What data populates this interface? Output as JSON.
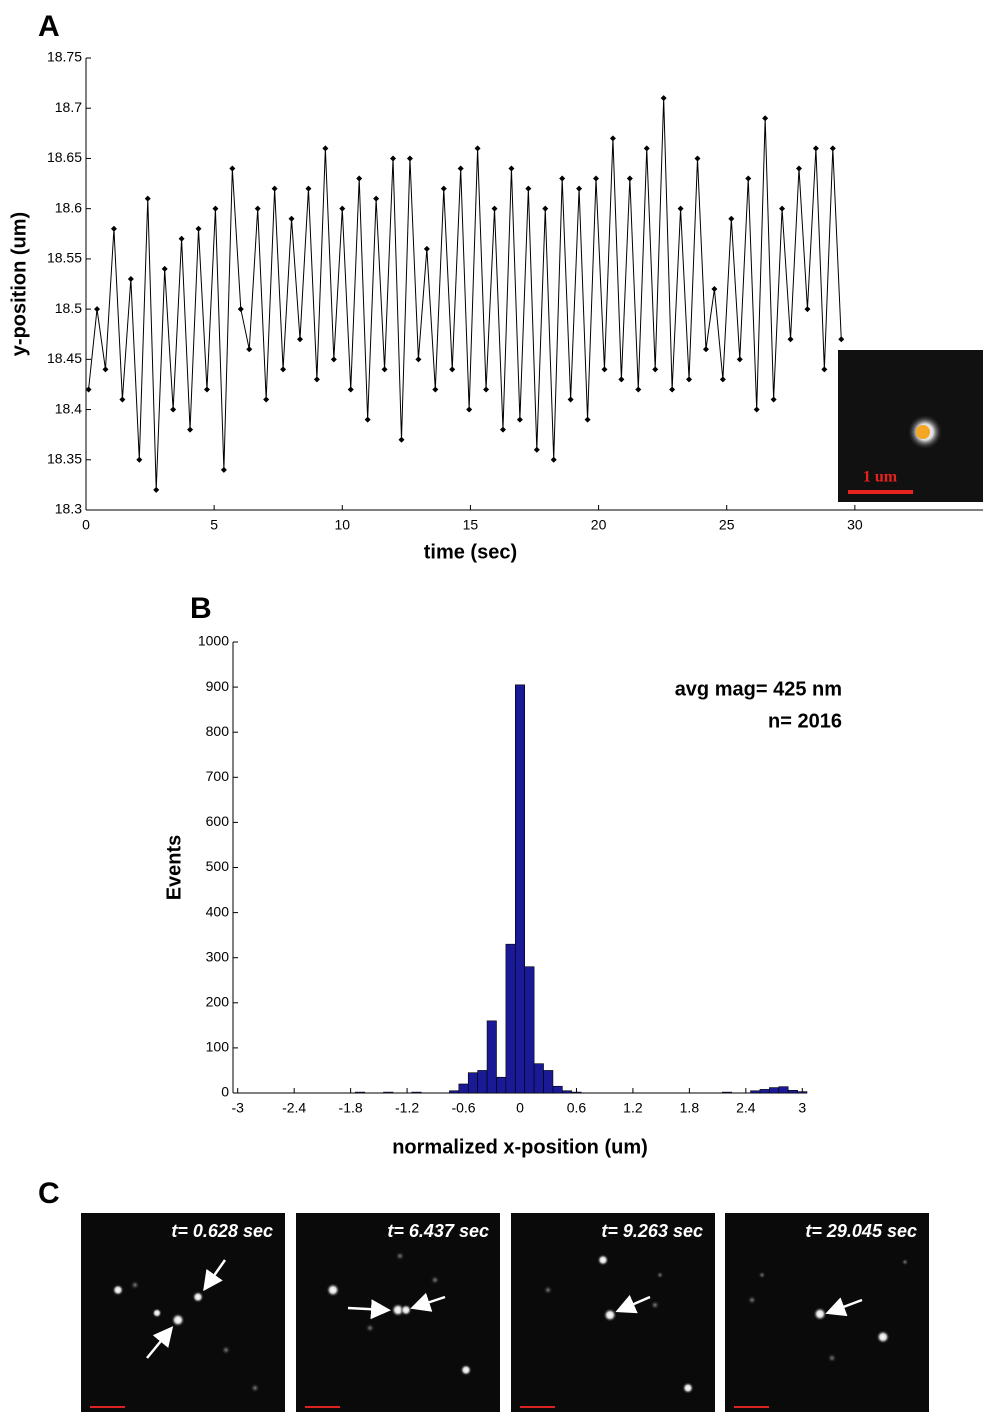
{
  "panel_labels": [
    "A",
    "B",
    "C"
  ],
  "inset": {
    "scale_label": "1 um"
  },
  "snapshots": [
    {
      "label": "t= 0.628 sec"
    },
    {
      "label": "t= 6.437 sec"
    },
    {
      "label": "t= 9.263 sec"
    },
    {
      "label": "t= 29.045 sec"
    }
  ],
  "chart_data": [
    {
      "type": "line",
      "x_label": "time (sec)",
      "y_label": "y-position (um)",
      "color": "#000000",
      "x": [
        0.1,
        0.43,
        0.76,
        1.09,
        1.42,
        1.75,
        2.08,
        2.41,
        2.74,
        3.07,
        3.4,
        3.73,
        4.06,
        4.39,
        4.72,
        5.05,
        5.38,
        5.71,
        6.04,
        6.37,
        6.7,
        7.03,
        7.36,
        7.69,
        8.02,
        8.35,
        8.68,
        9.01,
        9.34,
        9.67,
        10,
        10.33,
        10.66,
        10.99,
        11.32,
        11.65,
        11.98,
        12.31,
        12.64,
        12.97,
        13.3,
        13.63,
        13.96,
        14.29,
        14.62,
        14.95,
        15.28,
        15.61,
        15.94,
        16.27,
        16.6,
        16.93,
        17.26,
        17.59,
        17.92,
        18.25,
        18.58,
        18.91,
        19.24,
        19.57,
        19.9,
        20.23,
        20.56,
        20.89,
        21.22,
        21.55,
        21.88,
        22.21,
        22.54,
        22.87,
        23.2,
        23.53,
        23.86,
        24.19,
        24.52,
        24.85,
        25.18,
        25.51,
        25.84,
        26.17,
        26.5,
        26.83,
        27.16,
        27.49,
        27.82,
        28.15,
        28.48,
        28.81,
        29.14,
        29.47
      ],
      "values": [
        18.42,
        18.5,
        18.44,
        18.58,
        18.41,
        18.53,
        18.35,
        18.61,
        18.32,
        18.54,
        18.4,
        18.57,
        18.38,
        18.58,
        18.42,
        18.6,
        18.34,
        18.64,
        18.5,
        18.46,
        18.6,
        18.41,
        18.62,
        18.44,
        18.59,
        18.47,
        18.62,
        18.43,
        18.66,
        18.45,
        18.6,
        18.42,
        18.63,
        18.39,
        18.61,
        18.44,
        18.65,
        18.37,
        18.65,
        18.45,
        18.56,
        18.42,
        18.62,
        18.44,
        18.64,
        18.4,
        18.66,
        18.42,
        18.6,
        18.38,
        18.64,
        18.39,
        18.62,
        18.36,
        18.6,
        18.35,
        18.63,
        18.41,
        18.62,
        18.39,
        18.63,
        18.44,
        18.67,
        18.43,
        18.63,
        18.42,
        18.66,
        18.44,
        18.71,
        18.42,
        18.6,
        18.43,
        18.65,
        18.46,
        18.52,
        18.43,
        18.59,
        18.45,
        18.63,
        18.4,
        18.69,
        18.41,
        18.6,
        18.47,
        18.64,
        18.5,
        18.66,
        18.44,
        18.66,
        18.47
      ],
      "xlim": [
        0,
        35
      ],
      "xticks": [
        0,
        5,
        10,
        15,
        20,
        25,
        30
      ],
      "ylim": [
        18.3,
        18.75
      ],
      "yticks": [
        18.3,
        18.35,
        18.4,
        18.45,
        18.5,
        18.55,
        18.6,
        18.65,
        18.7,
        18.75
      ]
    },
    {
      "type": "histogram",
      "x_label": "normalized x-position (um)",
      "y_label": "Events",
      "color": "#1a1a96",
      "annotations": [
        "avg mag= 425 nm",
        "n= 2016"
      ],
      "bins": [
        -3.05,
        -2.95,
        -2.85,
        -2.75,
        -2.65,
        -2.55,
        -2.45,
        -2.35,
        -2.25,
        -2.15,
        -2.05,
        -1.95,
        -1.85,
        -1.75,
        -1.65,
        -1.55,
        -1.45,
        -1.35,
        -1.25,
        -1.15,
        -1.05,
        -0.95,
        -0.85,
        -0.75,
        -0.65,
        -0.55,
        -0.45,
        -0.35,
        -0.25,
        -0.15,
        -0.05,
        0.05,
        0.15,
        0.25,
        0.35,
        0.45,
        0.55,
        0.65,
        0.75,
        0.85,
        0.95,
        1.05,
        1.15,
        1.25,
        1.35,
        1.45,
        1.55,
        1.65,
        1.75,
        1.85,
        1.95,
        2.05,
        2.15,
        2.25,
        2.35,
        2.45,
        2.55,
        2.65,
        2.75,
        2.85,
        2.95,
        3.05
      ],
      "values": [
        0,
        0,
        0,
        0,
        0,
        0,
        0,
        0,
        0,
        0,
        0,
        0,
        0,
        2,
        0,
        0,
        2,
        0,
        0,
        2,
        0,
        0,
        0,
        5,
        20,
        45,
        50,
        160,
        35,
        330,
        905,
        280,
        65,
        50,
        15,
        5,
        2,
        0,
        0,
        0,
        0,
        0,
        0,
        0,
        0,
        0,
        0,
        0,
        0,
        0,
        0,
        0,
        2,
        0,
        0,
        5,
        8,
        12,
        14,
        6,
        3
      ],
      "xlim": [
        -3.05,
        3.05
      ],
      "xticks": [
        -3,
        -2.4,
        -1.8,
        -1.2,
        -0.6,
        0,
        0.6,
        1.2,
        1.8,
        2.4,
        3
      ],
      "ylim": [
        0,
        1000
      ],
      "yticks": [
        0,
        100,
        200,
        300,
        400,
        500,
        600,
        700,
        800,
        900,
        1000
      ]
    }
  ]
}
